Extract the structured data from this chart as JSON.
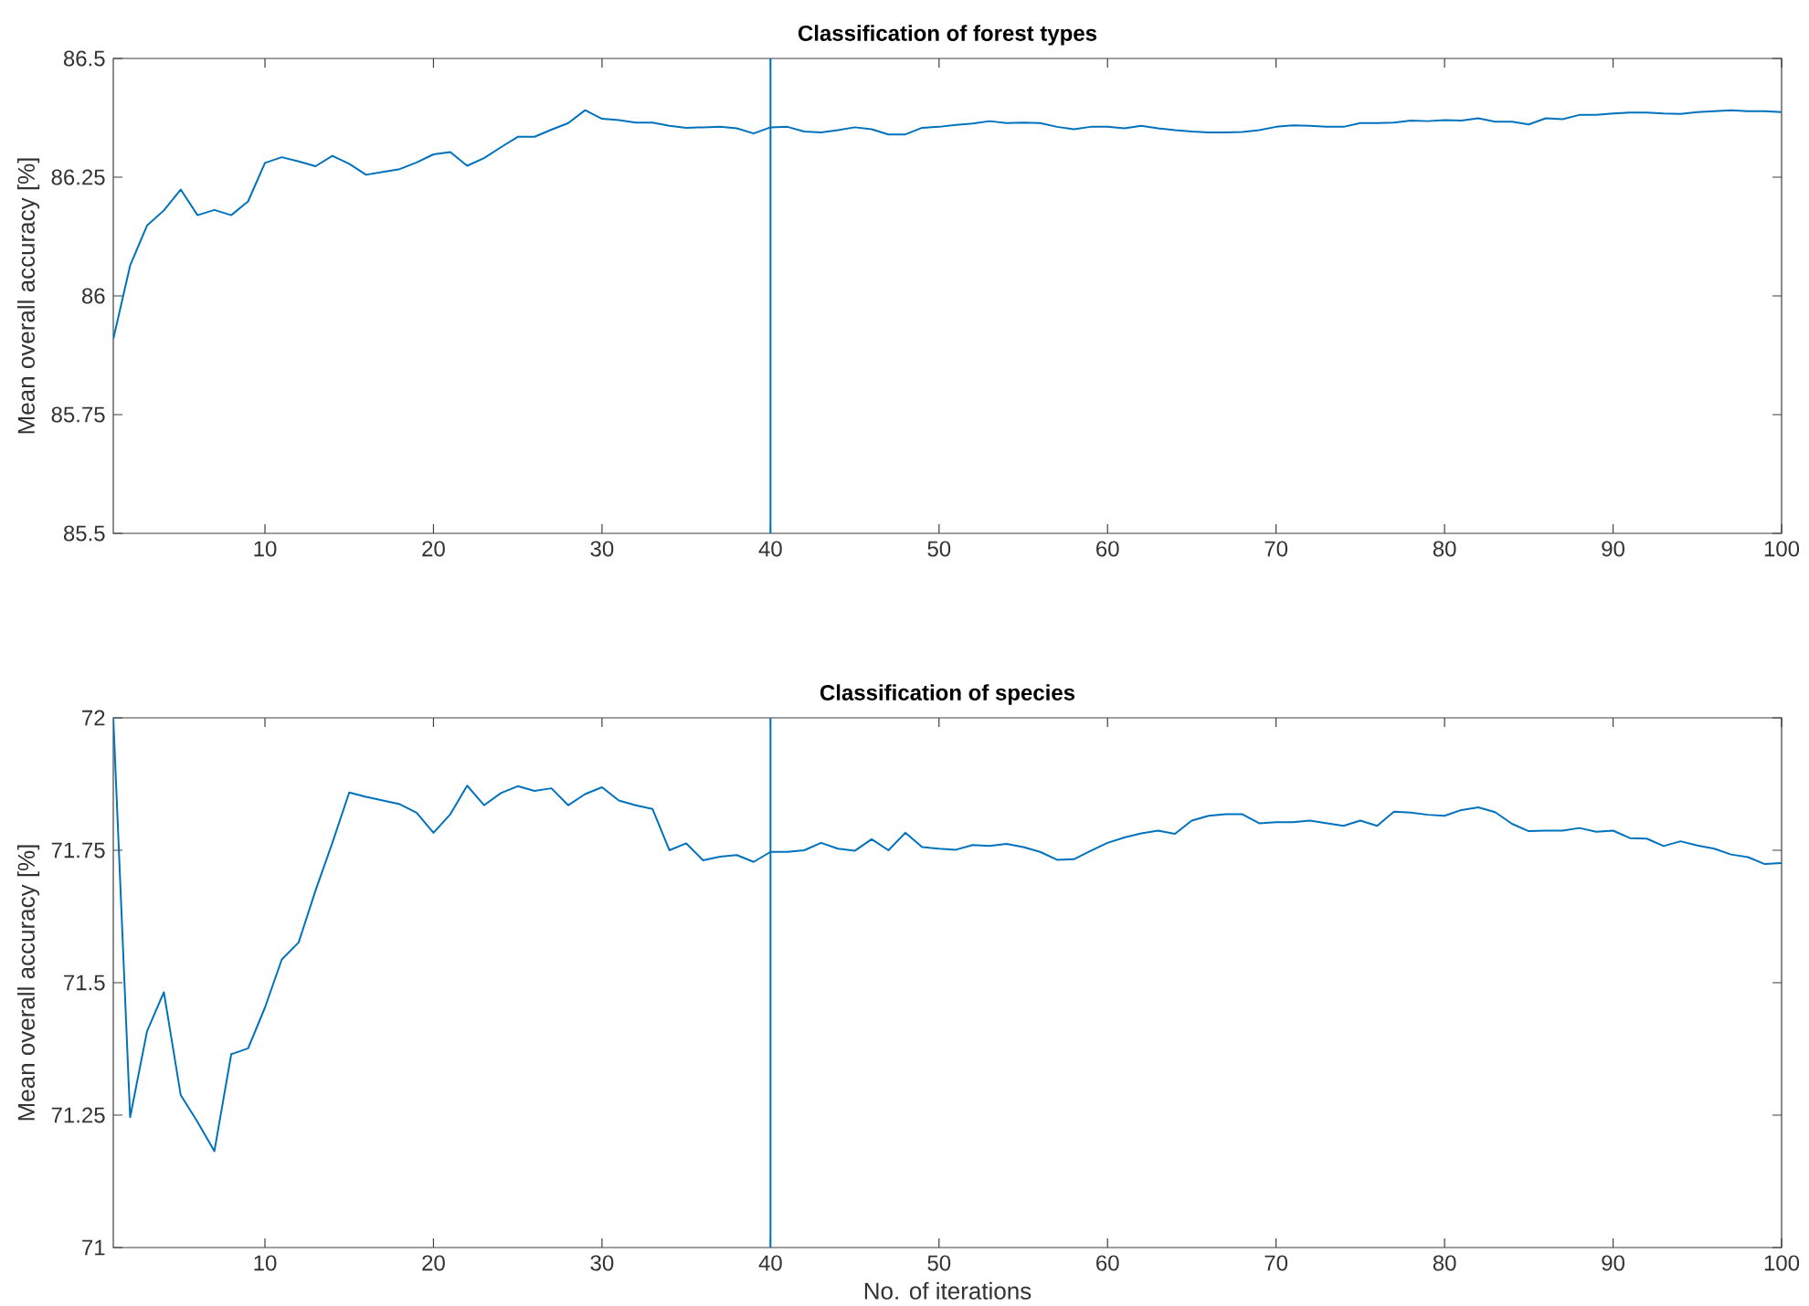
{
  "chart_data": [
    {
      "type": "line",
      "title": "Classification of forest types",
      "ylabel": "Mean overall accuracy [%]",
      "x": [
        1,
        2,
        3,
        4,
        5,
        6,
        7,
        8,
        9,
        10,
        11,
        12,
        13,
        14,
        15,
        16,
        17,
        18,
        19,
        20,
        21,
        22,
        23,
        24,
        25,
        26,
        27,
        28,
        29,
        30,
        31,
        32,
        33,
        34,
        35,
        36,
        37,
        38,
        39,
        40,
        41,
        42,
        43,
        44,
        45,
        46,
        47,
        48,
        49,
        50,
        51,
        52,
        53,
        54,
        55,
        56,
        57,
        58,
        59,
        60,
        61,
        62,
        63,
        64,
        65,
        66,
        67,
        68,
        69,
        70,
        71,
        72,
        73,
        74,
        75,
        76,
        77,
        78,
        79,
        80,
        81,
        82,
        83,
        84,
        85,
        86,
        87,
        88,
        89,
        90,
        91,
        92,
        93,
        94,
        95,
        96,
        97,
        98,
        99,
        100
      ],
      "series": [
        {
          "color": "#0072bd",
          "values": [
            85.909,
            86.064,
            86.148,
            86.18,
            86.224,
            86.17,
            86.181,
            86.17,
            86.199,
            86.28,
            86.292,
            86.283,
            86.273,
            86.295,
            86.278,
            86.255,
            86.261,
            86.267,
            86.281,
            86.298,
            86.303,
            86.274,
            86.29,
            86.313,
            86.335,
            86.335,
            86.35,
            86.364,
            86.391,
            86.373,
            86.37,
            86.365,
            86.365,
            86.358,
            86.354,
            86.355,
            86.356,
            86.353,
            86.342,
            86.355,
            86.356,
            86.346,
            86.344,
            86.349,
            86.355,
            86.351,
            86.34,
            86.34,
            86.354,
            86.356,
            86.36,
            86.363,
            86.368,
            86.364,
            86.365,
            86.364,
            86.356,
            86.351,
            86.356,
            86.356,
            86.353,
            86.358,
            86.353,
            86.349,
            86.346,
            86.344,
            86.344,
            86.345,
            86.349,
            86.356,
            86.359,
            86.358,
            86.356,
            86.356,
            86.364,
            86.364,
            86.365,
            86.369,
            86.368,
            86.37,
            86.369,
            86.374,
            86.367,
            86.367,
            86.361,
            86.374,
            86.372,
            86.381,
            86.381,
            86.384,
            86.386,
            86.386,
            86.384,
            86.383,
            86.387,
            86.389,
            86.391,
            86.389,
            86.389,
            86.387
          ]
        }
      ],
      "xlim": [
        1,
        100
      ],
      "xticks": [
        10,
        20,
        30,
        40,
        50,
        60,
        70,
        80,
        90,
        100
      ],
      "ylim": [
        85.5,
        86.5
      ],
      "yticks": [
        85.5,
        85.75,
        86,
        86.25,
        86.5
      ],
      "ref_lines": [
        {
          "axis": "x",
          "value": 40,
          "color": "#0072bd"
        }
      ]
    },
    {
      "type": "line",
      "title": "Classification of species",
      "xlabel": "No. of iterations",
      "ylabel": "Mean overall accuracy [%]",
      "x": [
        1,
        2,
        3,
        4,
        5,
        6,
        7,
        8,
        9,
        10,
        11,
        12,
        13,
        14,
        15,
        16,
        17,
        18,
        19,
        20,
        21,
        22,
        23,
        24,
        25,
        26,
        27,
        28,
        29,
        30,
        31,
        32,
        33,
        34,
        35,
        36,
        37,
        38,
        39,
        40,
        41,
        42,
        43,
        44,
        45,
        46,
        47,
        48,
        49,
        50,
        51,
        52,
        53,
        54,
        55,
        56,
        57,
        58,
        59,
        60,
        61,
        62,
        63,
        64,
        65,
        66,
        67,
        68,
        69,
        70,
        71,
        72,
        73,
        74,
        75,
        76,
        77,
        78,
        79,
        80,
        81,
        82,
        83,
        84,
        85,
        86,
        87,
        88,
        89,
        90,
        91,
        92,
        93,
        94,
        95,
        96,
        97,
        98,
        99,
        100
      ],
      "series": [
        {
          "color": "#0072bd",
          "values": [
            72.0,
            71.246,
            71.408,
            71.482,
            71.288,
            71.237,
            71.182,
            71.365,
            71.376,
            71.453,
            71.544,
            71.576,
            71.674,
            71.764,
            71.859,
            71.851,
            71.844,
            71.837,
            71.821,
            71.783,
            71.818,
            71.872,
            71.835,
            71.858,
            71.871,
            71.862,
            71.867,
            71.835,
            71.856,
            71.869,
            71.844,
            71.835,
            71.828,
            71.75,
            71.763,
            71.731,
            71.738,
            71.741,
            71.728,
            71.747,
            71.747,
            71.75,
            71.764,
            71.753,
            71.749,
            71.771,
            71.75,
            71.783,
            71.756,
            71.753,
            71.751,
            71.76,
            71.758,
            71.762,
            71.756,
            71.747,
            71.732,
            71.733,
            71.749,
            71.764,
            71.774,
            71.782,
            71.787,
            71.781,
            71.806,
            71.815,
            71.818,
            71.818,
            71.801,
            71.803,
            71.803,
            71.806,
            71.801,
            71.796,
            71.806,
            71.796,
            71.823,
            71.821,
            71.817,
            71.815,
            71.826,
            71.831,
            71.822,
            71.8,
            71.786,
            71.787,
            71.787,
            71.792,
            71.785,
            71.787,
            71.773,
            71.772,
            71.758,
            71.767,
            71.759,
            71.753,
            71.742,
            71.737,
            71.724,
            71.726
          ]
        }
      ],
      "xlim": [
        1,
        100
      ],
      "xticks": [
        10,
        20,
        30,
        40,
        50,
        60,
        70,
        80,
        90,
        100
      ],
      "ylim": [
        71,
        72
      ],
      "yticks": [
        71,
        71.25,
        71.5,
        71.75,
        72
      ],
      "ref_lines": [
        {
          "axis": "x",
          "value": 40,
          "color": "#0072bd"
        }
      ]
    }
  ]
}
